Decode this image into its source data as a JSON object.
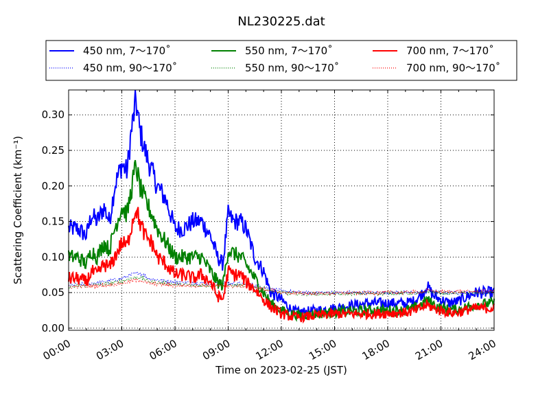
{
  "chart_data": {
    "type": "line",
    "title": "NL230225.dat",
    "xlabel": "Time on 2023-02-25 (JST)",
    "ylabel": "Scattering Coefficient (km⁻¹)",
    "xlim": [
      0,
      24
    ],
    "ylim": [
      -0.003,
      0.335
    ],
    "x_ticks": [
      0,
      3,
      6,
      9,
      12,
      15,
      18,
      21,
      24
    ],
    "x_tick_labels": [
      "00:00",
      "03:00",
      "06:00",
      "09:00",
      "12:00",
      "15:00",
      "18:00",
      "21:00",
      "24:00"
    ],
    "y_ticks": [
      0.0,
      0.05,
      0.1,
      0.15,
      0.2,
      0.25,
      0.3
    ],
    "y_tick_labels": [
      "0.00",
      "0.05",
      "0.10",
      "0.15",
      "0.20",
      "0.25",
      "0.30"
    ],
    "grid": true,
    "legend_position": "top, above plot",
    "series": [
      {
        "name": "450 nm, 7～170˚",
        "color": "#0000ff",
        "style": "solid",
        "points": [
          [
            0,
            0.14
          ],
          [
            0.5,
            0.14
          ],
          [
            1,
            0.13
          ],
          [
            1.3,
            0.16
          ],
          [
            1.6,
            0.15
          ],
          [
            2,
            0.17
          ],
          [
            2.3,
            0.15
          ],
          [
            2.6,
            0.2
          ],
          [
            3,
            0.23
          ],
          [
            3.3,
            0.22
          ],
          [
            3.5,
            0.27
          ],
          [
            3.8,
            0.32
          ],
          [
            4,
            0.28
          ],
          [
            4.3,
            0.25
          ],
          [
            4.7,
            0.22
          ],
          [
            5,
            0.2
          ],
          [
            5.5,
            0.18
          ],
          [
            6,
            0.14
          ],
          [
            6.5,
            0.14
          ],
          [
            7,
            0.15
          ],
          [
            7.5,
            0.15
          ],
          [
            8,
            0.13
          ],
          [
            8.4,
            0.1
          ],
          [
            8.7,
            0.09
          ],
          [
            9,
            0.16
          ],
          [
            9.3,
            0.15
          ],
          [
            9.7,
            0.15
          ],
          [
            10,
            0.14
          ],
          [
            10.5,
            0.1
          ],
          [
            11,
            0.08
          ],
          [
            11.4,
            0.05
          ],
          [
            12,
            0.04
          ],
          [
            12.6,
            0.025
          ],
          [
            13,
            0.022
          ],
          [
            14,
            0.025
          ],
          [
            15,
            0.028
          ],
          [
            16,
            0.032
          ],
          [
            17,
            0.035
          ],
          [
            18,
            0.035
          ],
          [
            19,
            0.035
          ],
          [
            19.5,
            0.038
          ],
          [
            20,
            0.05
          ],
          [
            20.2,
            0.06
          ],
          [
            20.6,
            0.045
          ],
          [
            21,
            0.04
          ],
          [
            21.5,
            0.035
          ],
          [
            22,
            0.038
          ],
          [
            22.5,
            0.045
          ],
          [
            23,
            0.05
          ],
          [
            24,
            0.05
          ]
        ]
      },
      {
        "name": "450 nm, 90～170˚",
        "color": "#0000ff",
        "style": "dotted",
        "points": [
          [
            0,
            0.06
          ],
          [
            1,
            0.062
          ],
          [
            2,
            0.065
          ],
          [
            3,
            0.07
          ],
          [
            3.5,
            0.075
          ],
          [
            4,
            0.078
          ],
          [
            4.5,
            0.07
          ],
          [
            5,
            0.068
          ],
          [
            6,
            0.065
          ],
          [
            7,
            0.064
          ],
          [
            8,
            0.063
          ],
          [
            9,
            0.063
          ],
          [
            10,
            0.062
          ],
          [
            11,
            0.058
          ],
          [
            12,
            0.052
          ],
          [
            13,
            0.05
          ],
          [
            15,
            0.05
          ],
          [
            18,
            0.05
          ],
          [
            20,
            0.05
          ],
          [
            20.2,
            0.055
          ],
          [
            21,
            0.05
          ],
          [
            24,
            0.05
          ]
        ]
      },
      {
        "name": "550 nm, 7～170˚",
        "color": "#008000",
        "style": "solid",
        "points": [
          [
            0,
            0.1
          ],
          [
            0.5,
            0.1
          ],
          [
            1,
            0.09
          ],
          [
            1.3,
            0.11
          ],
          [
            1.6,
            0.1
          ],
          [
            2,
            0.12
          ],
          [
            2.3,
            0.11
          ],
          [
            2.6,
            0.14
          ],
          [
            3,
            0.17
          ],
          [
            3.3,
            0.16
          ],
          [
            3.5,
            0.19
          ],
          [
            3.8,
            0.23
          ],
          [
            4,
            0.2
          ],
          [
            4.3,
            0.18
          ],
          [
            4.7,
            0.16
          ],
          [
            5,
            0.14
          ],
          [
            5.5,
            0.12
          ],
          [
            6,
            0.1
          ],
          [
            6.5,
            0.1
          ],
          [
            7,
            0.1
          ],
          [
            7.5,
            0.1
          ],
          [
            8,
            0.08
          ],
          [
            8.4,
            0.065
          ],
          [
            8.7,
            0.06
          ],
          [
            9,
            0.11
          ],
          [
            9.3,
            0.105
          ],
          [
            9.7,
            0.1
          ],
          [
            10,
            0.09
          ],
          [
            10.5,
            0.07
          ],
          [
            11,
            0.05
          ],
          [
            11.4,
            0.035
          ],
          [
            12,
            0.025
          ],
          [
            12.6,
            0.02
          ],
          [
            13,
            0.018
          ],
          [
            14,
            0.02
          ],
          [
            15,
            0.022
          ],
          [
            16,
            0.024
          ],
          [
            17,
            0.025
          ],
          [
            18,
            0.025
          ],
          [
            19,
            0.025
          ],
          [
            19.5,
            0.028
          ],
          [
            20,
            0.035
          ],
          [
            20.2,
            0.04
          ],
          [
            20.6,
            0.033
          ],
          [
            21,
            0.028
          ],
          [
            21.5,
            0.026
          ],
          [
            22,
            0.026
          ],
          [
            22.5,
            0.03
          ],
          [
            23,
            0.033
          ],
          [
            24,
            0.035
          ]
        ]
      },
      {
        "name": "550 nm, 90～170˚",
        "color": "#008000",
        "style": "dotted",
        "points": [
          [
            0,
            0.058
          ],
          [
            1,
            0.06
          ],
          [
            2,
            0.062
          ],
          [
            3,
            0.066
          ],
          [
            3.5,
            0.07
          ],
          [
            4,
            0.072
          ],
          [
            4.5,
            0.066
          ],
          [
            5,
            0.064
          ],
          [
            6,
            0.062
          ],
          [
            7,
            0.06
          ],
          [
            8,
            0.06
          ],
          [
            9,
            0.06
          ],
          [
            10,
            0.06
          ],
          [
            11,
            0.056
          ],
          [
            12,
            0.05
          ],
          [
            13,
            0.048
          ],
          [
            15,
            0.048
          ],
          [
            18,
            0.049
          ],
          [
            20,
            0.049
          ],
          [
            20.2,
            0.052
          ],
          [
            21,
            0.049
          ],
          [
            24,
            0.05
          ]
        ]
      },
      {
        "name": "700 nm, 7～170˚",
        "color": "#ff0000",
        "style": "solid",
        "points": [
          [
            0,
            0.07
          ],
          [
            0.5,
            0.07
          ],
          [
            1,
            0.065
          ],
          [
            1.3,
            0.08
          ],
          [
            1.6,
            0.075
          ],
          [
            2,
            0.09
          ],
          [
            2.3,
            0.085
          ],
          [
            2.6,
            0.1
          ],
          [
            3,
            0.12
          ],
          [
            3.3,
            0.115
          ],
          [
            3.5,
            0.14
          ],
          [
            3.8,
            0.17
          ],
          [
            4,
            0.15
          ],
          [
            4.3,
            0.13
          ],
          [
            4.7,
            0.12
          ],
          [
            5,
            0.1
          ],
          [
            5.5,
            0.09
          ],
          [
            6,
            0.075
          ],
          [
            6.5,
            0.075
          ],
          [
            7,
            0.07
          ],
          [
            7.5,
            0.075
          ],
          [
            8,
            0.065
          ],
          [
            8.4,
            0.045
          ],
          [
            8.7,
            0.04
          ],
          [
            9,
            0.08
          ],
          [
            9.3,
            0.075
          ],
          [
            9.7,
            0.075
          ],
          [
            10,
            0.065
          ],
          [
            10.5,
            0.055
          ],
          [
            11,
            0.04
          ],
          [
            11.4,
            0.03
          ],
          [
            12,
            0.02
          ],
          [
            12.6,
            0.016
          ],
          [
            13,
            0.015
          ],
          [
            14,
            0.018
          ],
          [
            15,
            0.02
          ],
          [
            16,
            0.02
          ],
          [
            17,
            0.02
          ],
          [
            18,
            0.021
          ],
          [
            19,
            0.022
          ],
          [
            19.5,
            0.024
          ],
          [
            20,
            0.03
          ],
          [
            20.2,
            0.033
          ],
          [
            20.6,
            0.028
          ],
          [
            21,
            0.025
          ],
          [
            21.5,
            0.022
          ],
          [
            22,
            0.022
          ],
          [
            22.5,
            0.026
          ],
          [
            23,
            0.028
          ],
          [
            24,
            0.028
          ]
        ]
      },
      {
        "name": "700 nm, 90～170˚",
        "color": "#ff0000",
        "style": "dotted",
        "points": [
          [
            0,
            0.058
          ],
          [
            1,
            0.059
          ],
          [
            2,
            0.06
          ],
          [
            3,
            0.063
          ],
          [
            3.5,
            0.066
          ],
          [
            4,
            0.068
          ],
          [
            4.5,
            0.063
          ],
          [
            5,
            0.062
          ],
          [
            6,
            0.06
          ],
          [
            7,
            0.06
          ],
          [
            8,
            0.06
          ],
          [
            9,
            0.059
          ],
          [
            10,
            0.059
          ],
          [
            11,
            0.055
          ],
          [
            12,
            0.05
          ],
          [
            13,
            0.049
          ],
          [
            15,
            0.049
          ],
          [
            18,
            0.05
          ],
          [
            20,
            0.051
          ],
          [
            20.2,
            0.053
          ],
          [
            21,
            0.051
          ],
          [
            24,
            0.052
          ]
        ]
      }
    ]
  }
}
